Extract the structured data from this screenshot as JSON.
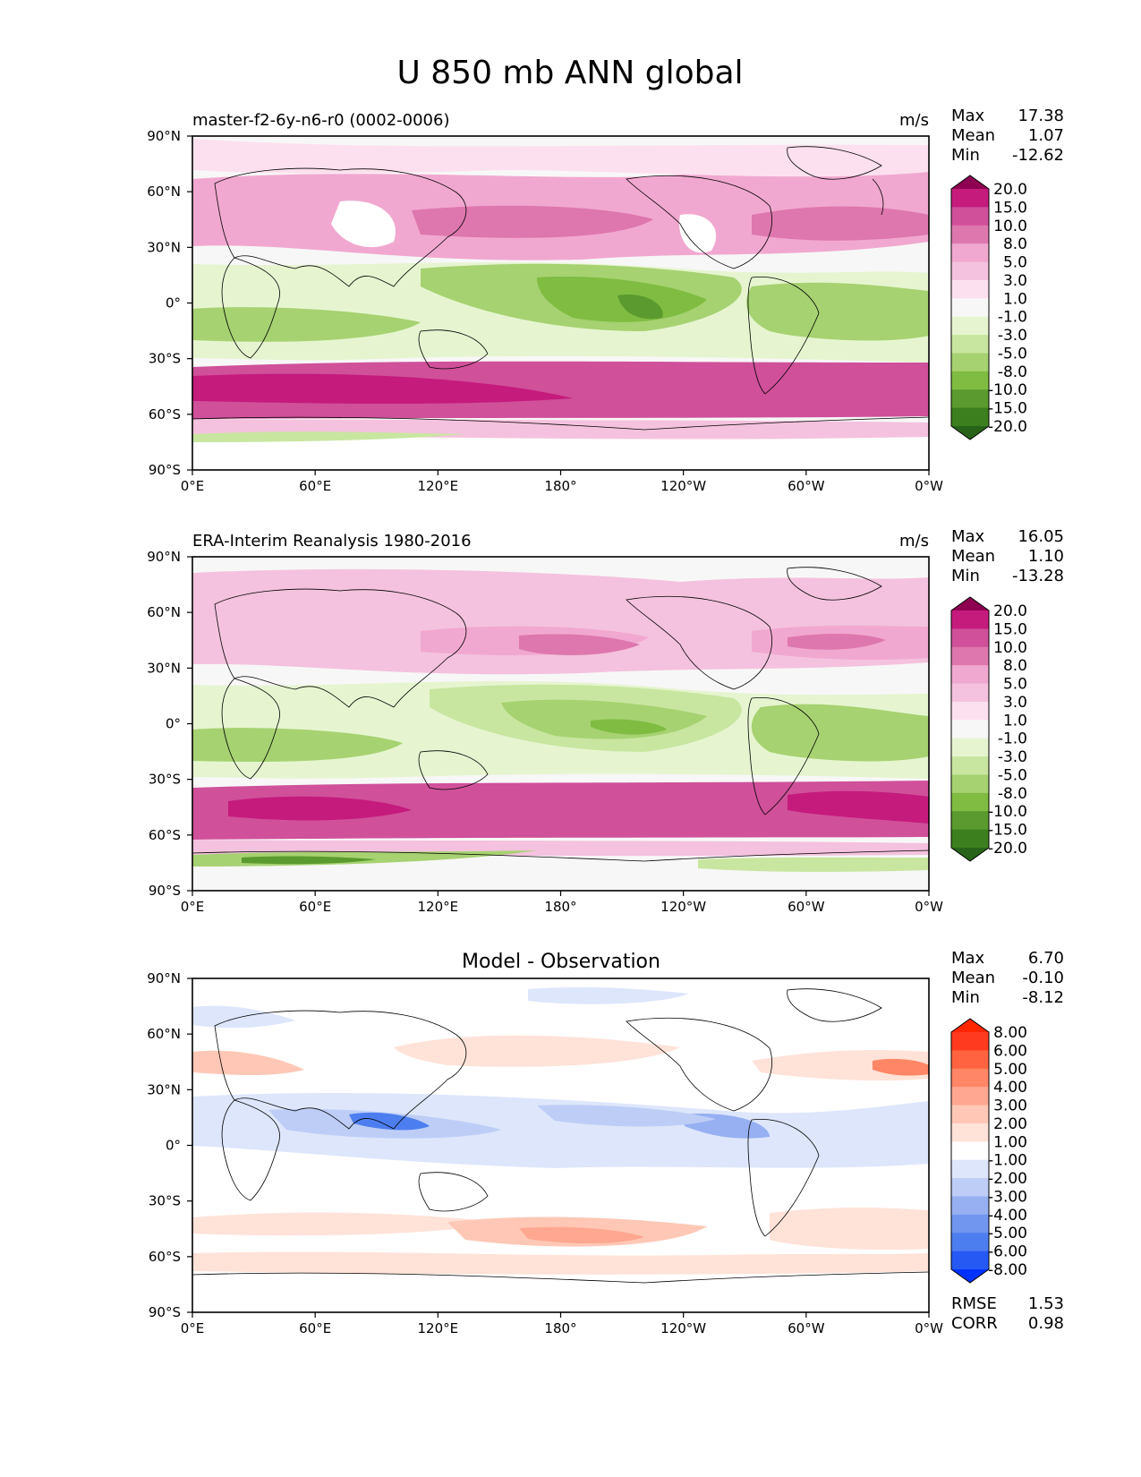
{
  "title": "U 850 mb ANN global",
  "x_ticks": [
    "0°E",
    "60°E",
    "120°E",
    "180°",
    "120°W",
    "60°W",
    "0°W"
  ],
  "y_ticks": [
    "90°N",
    "60°N",
    "30°N",
    "0°",
    "30°S",
    "60°S",
    "90°S"
  ],
  "stat_labels": {
    "max": "Max",
    "mean": "Mean",
    "min": "Min",
    "rmse": "RMSE",
    "corr": "CORR"
  },
  "colors": {
    "field": [
      "#276419",
      "#3c7f1e",
      "#5a9a2e",
      "#7fbc41",
      "#a6d271",
      "#c8e6a0",
      "#e6f5d0",
      "#f7f7f7",
      "#fde0ef",
      "#f4c2de",
      "#f1a8d0",
      "#de77ae",
      "#d0509a",
      "#c51b7d",
      "#8e0152"
    ],
    "diff": [
      "#0032ff",
      "#2659f4",
      "#4d7ef0",
      "#7196f0",
      "#97b0f2",
      "#bdcdf6",
      "#dde6fb",
      "#ffffff",
      "#ffe2d8",
      "#ffc7b6",
      "#ffa790",
      "#ff8666",
      "#ff633f",
      "#ff3a1f",
      "#ff2600"
    ]
  },
  "panels": [
    {
      "left_title": "master-f2-6y-n6-r0 (0002-0006)",
      "center_title": "",
      "units": "m/s",
      "stats": {
        "max": "17.38",
        "mean": "1.07",
        "min": "-12.62"
      },
      "colorbar_levels": [
        "20.0",
        "15.0",
        "10.0",
        "8.0",
        "5.0",
        "3.0",
        "1.0",
        "-1.0",
        "-3.0",
        "-5.0",
        "-8.0",
        "-10.0",
        "-15.0",
        "-20.0"
      ],
      "palette": "field"
    },
    {
      "left_title": "ERA-Interim Reanalysis 1980-2016",
      "center_title": "",
      "units": "m/s",
      "stats": {
        "max": "16.05",
        "mean": "1.10",
        "min": "-13.28"
      },
      "colorbar_levels": [
        "20.0",
        "15.0",
        "10.0",
        "8.0",
        "5.0",
        "3.0",
        "1.0",
        "-1.0",
        "-3.0",
        "-5.0",
        "-8.0",
        "-10.0",
        "-15.0",
        "-20.0"
      ],
      "palette": "field"
    },
    {
      "left_title": "",
      "center_title": "Model - Observation",
      "units": "",
      "stats": {
        "max": "6.70",
        "mean": "-0.10",
        "min": "-8.12",
        "rmse": "1.53",
        "corr": "0.98"
      },
      "colorbar_levels": [
        "8.00",
        "6.00",
        "5.00",
        "4.00",
        "3.00",
        "2.00",
        "1.00",
        "-1.00",
        "-2.00",
        "-3.00",
        "-4.00",
        "-5.00",
        "-6.00",
        "-8.00"
      ],
      "palette": "diff"
    }
  ]
}
